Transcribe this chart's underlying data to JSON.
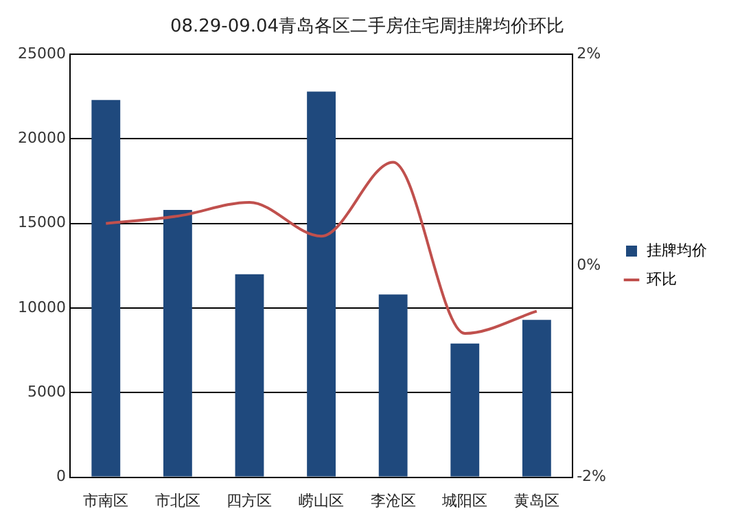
{
  "chart_data": {
    "type": "bar",
    "title": "08.29-09.04青岛各区二手房住宅周挂牌均价环比",
    "categories": [
      "市南区",
      "市北区",
      "四方区",
      "崂山区",
      "李沧区",
      "城阳区",
      "黄岛区"
    ],
    "series": [
      {
        "name": "挂牌均价",
        "color": "#1f497d",
        "values": [
          22300,
          15800,
          12000,
          22800,
          10800,
          7900,
          9300
        ]
      },
      {
        "name": "环比",
        "type": "line",
        "axis": "y2",
        "color": "#c0504d",
        "values": [
          0.4,
          0.47,
          0.6,
          0.28,
          0.98,
          -0.64,
          -0.43
        ]
      }
    ],
    "ylim": [
      0,
      25000
    ],
    "yticks": [
      0,
      5000,
      10000,
      15000,
      20000,
      25000
    ],
    "y2lim": [
      -2,
      2
    ],
    "y2ticks": [
      {
        "value": -2,
        "label": "-2%"
      },
      {
        "value": 0,
        "label": "0%"
      },
      {
        "value": 2,
        "label": "2%"
      }
    ],
    "grid": "y",
    "legend": "right",
    "marker": "none"
  }
}
